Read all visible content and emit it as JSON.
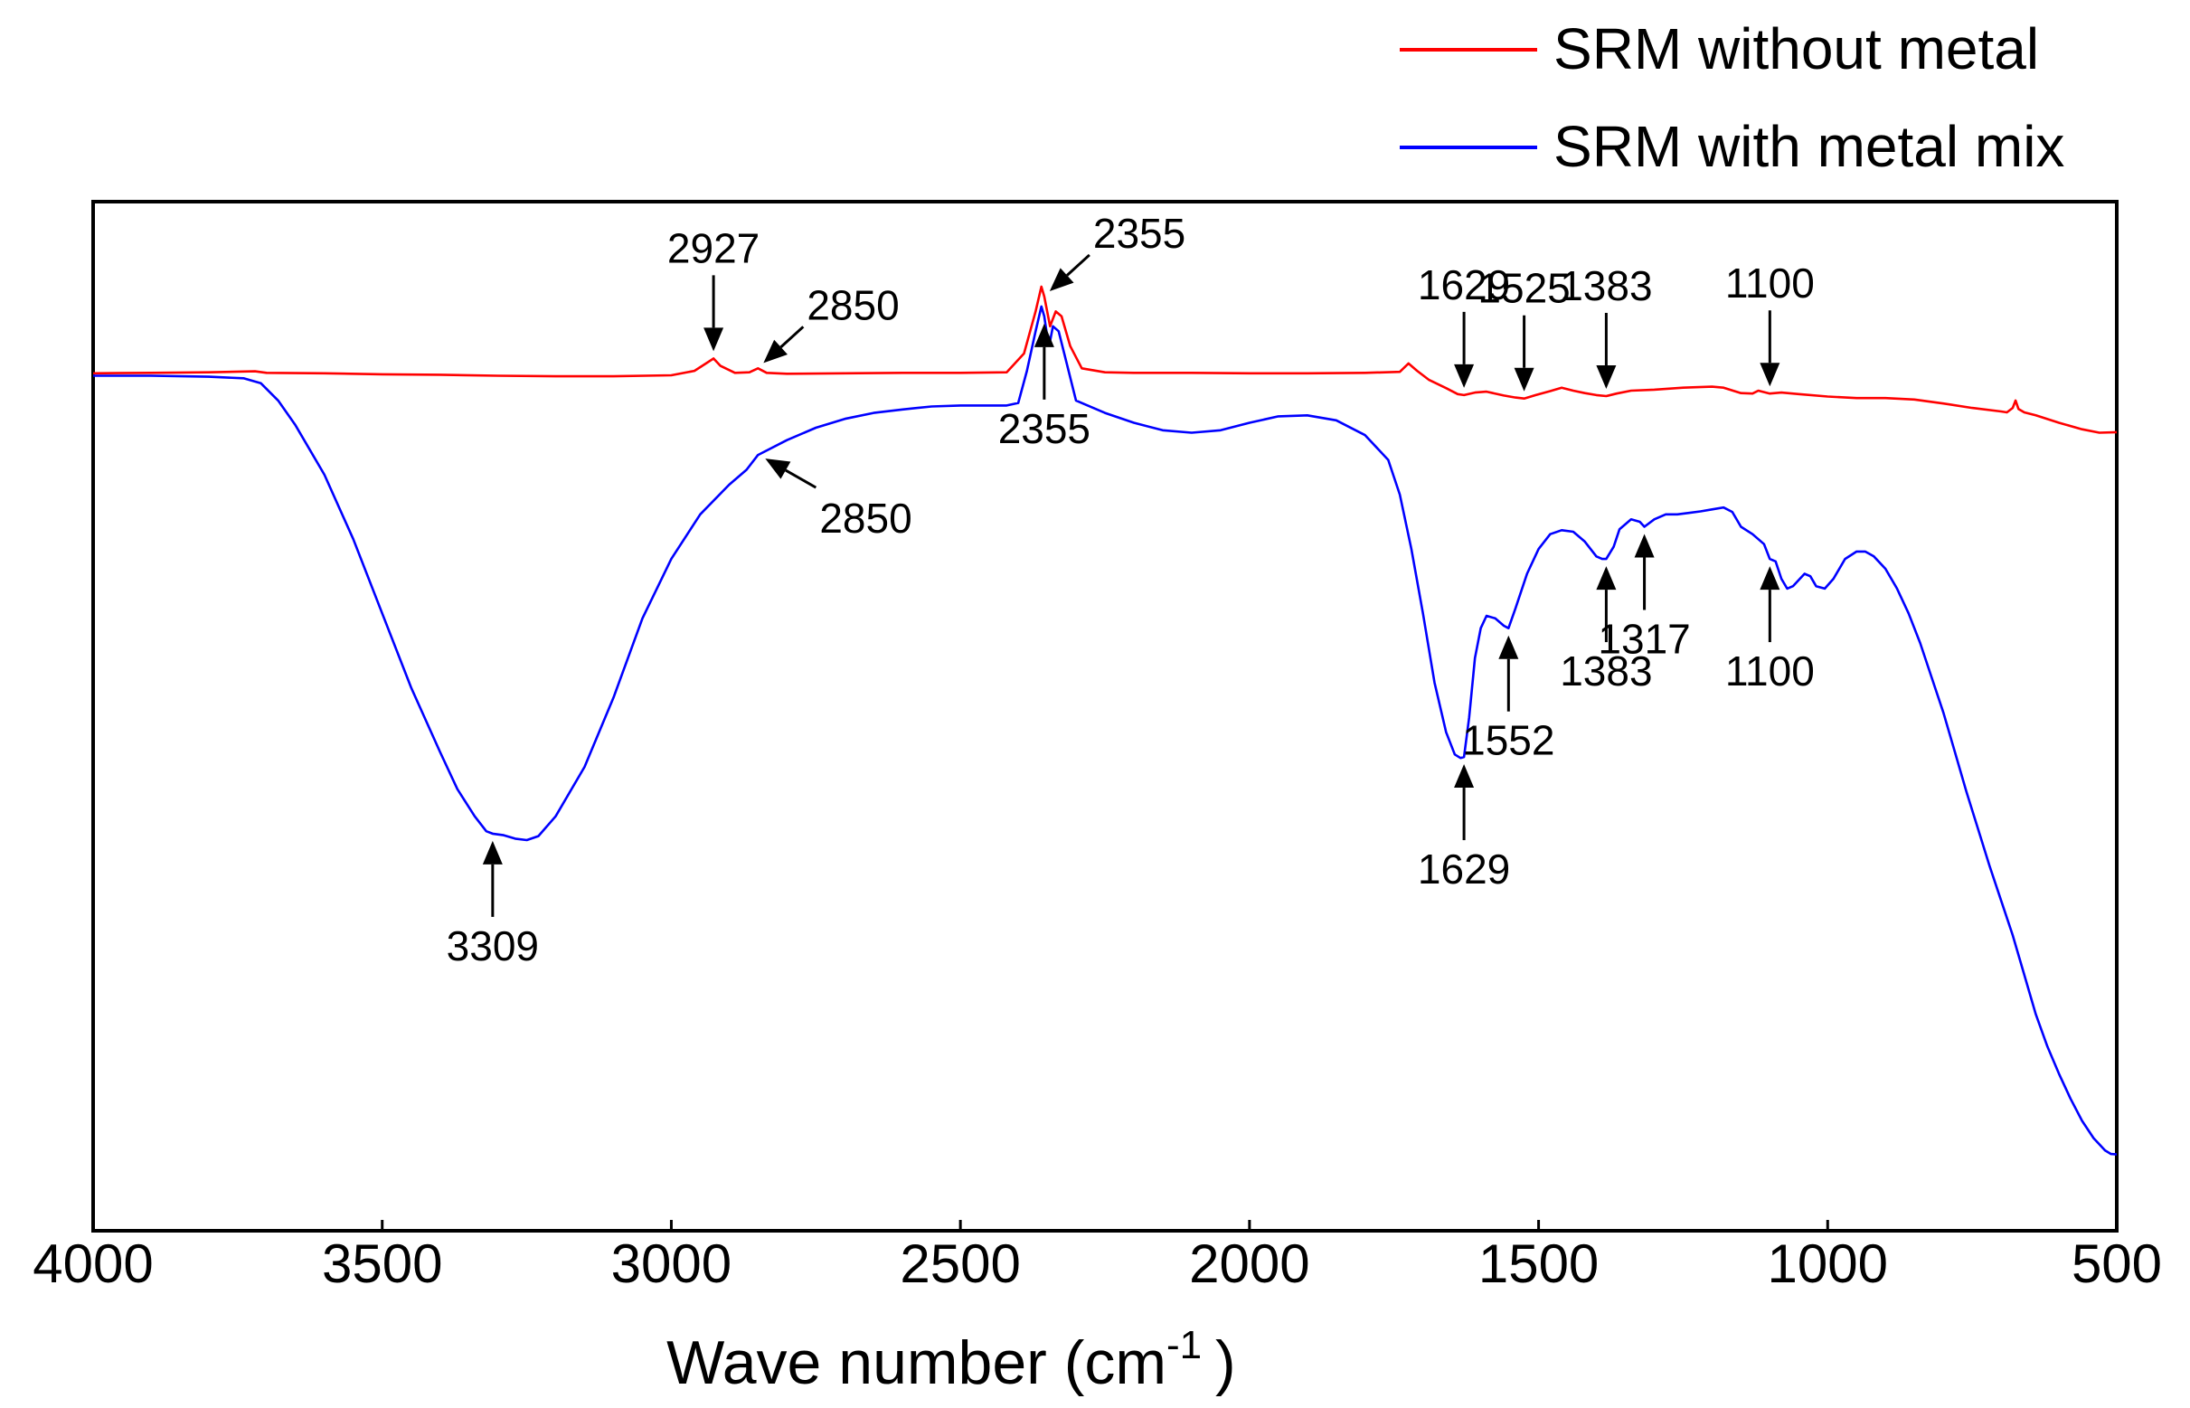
{
  "chart_data": {
    "type": "line",
    "title": "",
    "xlabel": "Wave number (cm",
    "xlabel_sup": "-1",
    "xlabel_tail": ")",
    "ylabel": "",
    "xlim": [
      4000,
      500
    ],
    "x_reversed": true,
    "x_ticks": [
      4000,
      3500,
      3000,
      2500,
      2000,
      1500,
      1000,
      500
    ],
    "x_tick_labels": [
      "4000",
      "3500",
      "3000",
      "2500",
      "2000",
      "1500",
      "1000",
      "500"
    ],
    "y_ticks_shown": false,
    "grid": false,
    "legend_position": "top-right, outside plot",
    "series": [
      {
        "name": "SRM without metal",
        "color": "#ff0000",
        "points": [
          [
            4000,
            82.5
          ],
          [
            3900,
            82.6
          ],
          [
            3800,
            82.7
          ],
          [
            3720,
            82.9
          ],
          [
            3700,
            82.6
          ],
          [
            3600,
            82.5
          ],
          [
            3500,
            82.3
          ],
          [
            3400,
            82.2
          ],
          [
            3300,
            82.0
          ],
          [
            3200,
            81.9
          ],
          [
            3100,
            81.9
          ],
          [
            3000,
            82.1
          ],
          [
            2960,
            83.0
          ],
          [
            2940,
            84.5
          ],
          [
            2927,
            85.5
          ],
          [
            2915,
            84.0
          ],
          [
            2890,
            82.6
          ],
          [
            2865,
            82.7
          ],
          [
            2850,
            83.5
          ],
          [
            2835,
            82.6
          ],
          [
            2800,
            82.4
          ],
          [
            2700,
            82.5
          ],
          [
            2600,
            82.6
          ],
          [
            2500,
            82.6
          ],
          [
            2420,
            82.7
          ],
          [
            2390,
            86.5
          ],
          [
            2370,
            95.0
          ],
          [
            2360,
            100.0
          ],
          [
            2355,
            98.0
          ],
          [
            2345,
            92.0
          ],
          [
            2335,
            95.0
          ],
          [
            2325,
            94.0
          ],
          [
            2310,
            88.0
          ],
          [
            2290,
            83.5
          ],
          [
            2250,
            82.7
          ],
          [
            2200,
            82.6
          ],
          [
            2100,
            82.6
          ],
          [
            2000,
            82.5
          ],
          [
            1900,
            82.5
          ],
          [
            1800,
            82.6
          ],
          [
            1740,
            82.8
          ],
          [
            1725,
            84.5
          ],
          [
            1710,
            83.0
          ],
          [
            1690,
            81.2
          ],
          [
            1660,
            79.5
          ],
          [
            1640,
            78.3
          ],
          [
            1629,
            78.1
          ],
          [
            1610,
            78.6
          ],
          [
            1590,
            78.8
          ],
          [
            1560,
            78.0
          ],
          [
            1540,
            77.6
          ],
          [
            1525,
            77.4
          ],
          [
            1505,
            78.1
          ],
          [
            1480,
            78.9
          ],
          [
            1460,
            79.6
          ],
          [
            1440,
            79.0
          ],
          [
            1420,
            78.5
          ],
          [
            1400,
            78.1
          ],
          [
            1383,
            77.9
          ],
          [
            1365,
            78.4
          ],
          [
            1340,
            79.0
          ],
          [
            1300,
            79.2
          ],
          [
            1250,
            79.6
          ],
          [
            1200,
            79.8
          ],
          [
            1180,
            79.6
          ],
          [
            1150,
            78.5
          ],
          [
            1130,
            78.4
          ],
          [
            1120,
            79.0
          ],
          [
            1100,
            78.4
          ],
          [
            1080,
            78.6
          ],
          [
            1050,
            78.3
          ],
          [
            1000,
            77.8
          ],
          [
            950,
            77.5
          ],
          [
            900,
            77.5
          ],
          [
            850,
            77.2
          ],
          [
            800,
            76.4
          ],
          [
            750,
            75.5
          ],
          [
            700,
            74.8
          ],
          [
            690,
            74.6
          ],
          [
            680,
            75.5
          ],
          [
            675,
            77.0
          ],
          [
            670,
            75.3
          ],
          [
            660,
            74.6
          ],
          [
            640,
            74.0
          ],
          [
            600,
            72.5
          ],
          [
            560,
            71.2
          ],
          [
            530,
            70.5
          ],
          [
            500,
            70.6
          ]
        ]
      },
      {
        "name": "SRM with metal mix",
        "color": "#0000ff",
        "points": [
          [
            4000,
            82.0
          ],
          [
            3900,
            82.0
          ],
          [
            3800,
            81.8
          ],
          [
            3740,
            81.5
          ],
          [
            3710,
            80.5
          ],
          [
            3680,
            77.0
          ],
          [
            3650,
            72.0
          ],
          [
            3600,
            62.0
          ],
          [
            3550,
            49.0
          ],
          [
            3500,
            34.0
          ],
          [
            3450,
            19.0
          ],
          [
            3400,
            6.0
          ],
          [
            3370,
            -1.5
          ],
          [
            3340,
            -7.0
          ],
          [
            3320,
            -10.0
          ],
          [
            3309,
            -10.5
          ],
          [
            3290,
            -10.8
          ],
          [
            3270,
            -11.5
          ],
          [
            3250,
            -11.8
          ],
          [
            3230,
            -11.0
          ],
          [
            3200,
            -7.0
          ],
          [
            3150,
            3.0
          ],
          [
            3100,
            17.0
          ],
          [
            3050,
            33.0
          ],
          [
            3000,
            45.0
          ],
          [
            2950,
            54.0
          ],
          [
            2900,
            60.0
          ],
          [
            2870,
            63.0
          ],
          [
            2850,
            66.0
          ],
          [
            2800,
            69.0
          ],
          [
            2750,
            71.5
          ],
          [
            2700,
            73.3
          ],
          [
            2650,
            74.5
          ],
          [
            2600,
            75.2
          ],
          [
            2550,
            75.8
          ],
          [
            2500,
            76.0
          ],
          [
            2450,
            76.0
          ],
          [
            2420,
            76.0
          ],
          [
            2400,
            76.5
          ],
          [
            2385,
            83.0
          ],
          [
            2370,
            91.0
          ],
          [
            2360,
            96.0
          ],
          [
            2355,
            94.0
          ],
          [
            2350,
            90.0
          ],
          [
            2345,
            89.0
          ],
          [
            2340,
            92.0
          ],
          [
            2330,
            91.0
          ],
          [
            2315,
            84.0
          ],
          [
            2300,
            77.0
          ],
          [
            2250,
            74.5
          ],
          [
            2200,
            72.5
          ],
          [
            2150,
            71.0
          ],
          [
            2100,
            70.5
          ],
          [
            2050,
            71.0
          ],
          [
            2000,
            72.5
          ],
          [
            1950,
            73.8
          ],
          [
            1900,
            74.0
          ],
          [
            1850,
            73.0
          ],
          [
            1800,
            70.0
          ],
          [
            1760,
            65.0
          ],
          [
            1740,
            58.0
          ],
          [
            1720,
            47.0
          ],
          [
            1700,
            34.0
          ],
          [
            1680,
            20.0
          ],
          [
            1660,
            10.0
          ],
          [
            1645,
            5.5
          ],
          [
            1635,
            4.8
          ],
          [
            1629,
            5.0
          ],
          [
            1620,
            13.0
          ],
          [
            1610,
            25.0
          ],
          [
            1600,
            31.0
          ],
          [
            1590,
            33.5
          ],
          [
            1575,
            33.0
          ],
          [
            1560,
            31.5
          ],
          [
            1552,
            31.0
          ],
          [
            1540,
            35.0
          ],
          [
            1520,
            42.0
          ],
          [
            1500,
            47.0
          ],
          [
            1480,
            50.0
          ],
          [
            1460,
            50.8
          ],
          [
            1440,
            50.5
          ],
          [
            1420,
            48.5
          ],
          [
            1400,
            45.5
          ],
          [
            1390,
            45.0
          ],
          [
            1383,
            45.0
          ],
          [
            1370,
            47.5
          ],
          [
            1360,
            51.0
          ],
          [
            1340,
            53.0
          ],
          [
            1325,
            52.5
          ],
          [
            1317,
            51.5
          ],
          [
            1300,
            53.0
          ],
          [
            1280,
            54.0
          ],
          [
            1260,
            54.0
          ],
          [
            1240,
            54.3
          ],
          [
            1220,
            54.6
          ],
          [
            1200,
            55.0
          ],
          [
            1180,
            55.4
          ],
          [
            1165,
            54.5
          ],
          [
            1150,
            51.5
          ],
          [
            1130,
            50.0
          ],
          [
            1110,
            48.0
          ],
          [
            1100,
            45.0
          ],
          [
            1090,
            44.5
          ],
          [
            1080,
            41.0
          ],
          [
            1070,
            39.0
          ],
          [
            1060,
            39.5
          ],
          [
            1040,
            42.0
          ],
          [
            1030,
            41.5
          ],
          [
            1020,
            39.5
          ],
          [
            1005,
            39.0
          ],
          [
            990,
            41.0
          ],
          [
            970,
            45.0
          ],
          [
            950,
            46.5
          ],
          [
            935,
            46.5
          ],
          [
            920,
            45.5
          ],
          [
            900,
            43.0
          ],
          [
            880,
            39.0
          ],
          [
            860,
            34.0
          ],
          [
            840,
            28.0
          ],
          [
            820,
            21.0
          ],
          [
            800,
            14.0
          ],
          [
            780,
            6.0
          ],
          [
            760,
            -2.0
          ],
          [
            740,
            -9.5
          ],
          [
            720,
            -17.0
          ],
          [
            700,
            -24.0
          ],
          [
            680,
            -31.0
          ],
          [
            660,
            -39.0
          ],
          [
            640,
            -47.0
          ],
          [
            620,
            -53.5
          ],
          [
            600,
            -59.0
          ],
          [
            580,
            -64.0
          ],
          [
            560,
            -68.5
          ],
          [
            540,
            -72.0
          ],
          [
            520,
            -74.5
          ],
          [
            510,
            -75.2
          ],
          [
            500,
            -75.3
          ]
        ]
      }
    ],
    "annotations": [
      {
        "text": "2927",
        "series": 0,
        "x": 2927,
        "direction": "down"
      },
      {
        "text": "2850",
        "series": 0,
        "x": 2850,
        "direction": "diag-down-left"
      },
      {
        "text": "2355",
        "series": 0,
        "x": 2355,
        "direction": "diag-down-left"
      },
      {
        "text": "1629",
        "series": 0,
        "x": 1629,
        "direction": "down"
      },
      {
        "text": "1525",
        "series": 0,
        "x": 1525,
        "direction": "down"
      },
      {
        "text": "1383",
        "series": 0,
        "x": 1383,
        "direction": "down"
      },
      {
        "text": "1100",
        "series": 0,
        "x": 1100,
        "direction": "down"
      },
      {
        "text": "2355",
        "series": 1,
        "x": 2355,
        "direction": "up"
      },
      {
        "text": "2850",
        "series": 1,
        "x": 2850,
        "direction": "diag-up-left"
      },
      {
        "text": "3309",
        "series": 1,
        "x": 3309,
        "direction": "up"
      },
      {
        "text": "1629",
        "series": 1,
        "x": 1629,
        "direction": "up"
      },
      {
        "text": "1552",
        "series": 1,
        "x": 1552,
        "direction": "up"
      },
      {
        "text": "1383",
        "series": 1,
        "x": 1383,
        "direction": "up"
      },
      {
        "text": "1317",
        "series": 1,
        "x": 1317,
        "direction": "up"
      },
      {
        "text": "1100",
        "series": 1,
        "x": 1100,
        "direction": "up"
      }
    ]
  }
}
